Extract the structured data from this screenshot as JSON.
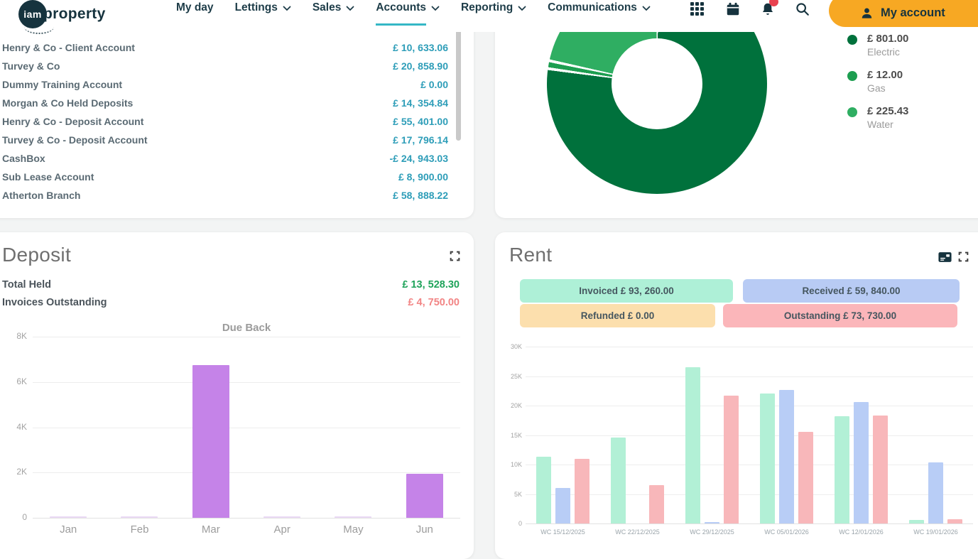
{
  "nav": {
    "logo": {
      "circle_text": "iam",
      "wordmark": "property"
    },
    "items": [
      {
        "label": "My day",
        "dropdown": false,
        "active": false
      },
      {
        "label": "Lettings",
        "dropdown": true,
        "active": false
      },
      {
        "label": "Sales",
        "dropdown": true,
        "active": false
      },
      {
        "label": "Accounts",
        "dropdown": true,
        "active": true
      },
      {
        "label": "Reporting",
        "dropdown": true,
        "active": false
      },
      {
        "label": "Communications",
        "dropdown": true,
        "active": false
      }
    ],
    "icons": [
      "apps-grid-icon",
      "calendar-icon",
      "notifications-bell-icon",
      "search-icon"
    ],
    "notification_badge_color": "#e8414f",
    "account_button": {
      "label": "My account",
      "bg": "#f7a823"
    }
  },
  "accounts_panel": {
    "amount_color": "#2d9db8",
    "rows": [
      {
        "name": "Henry & Co - Client Account",
        "amount": "£ 10, 633.06"
      },
      {
        "name": "Turvey & Co",
        "amount": "£ 20, 858.90"
      },
      {
        "name": "Dummy Training Account",
        "amount": "£ 0.00"
      },
      {
        "name": "Morgan & Co Held Deposits",
        "amount": "£ 14, 354.84"
      },
      {
        "name": "Henry & Co - Deposit Account",
        "amount": "£ 55, 401.00"
      },
      {
        "name": "Turvey & Co - Deposit Account",
        "amount": "£ 17, 796.14"
      },
      {
        "name": "CashBox",
        "amount": "-£ 24, 943.03"
      },
      {
        "name": "Sub Lease Account",
        "amount": "£ 8, 900.00"
      },
      {
        "name": "Atherton Branch",
        "amount": "£ 58, 888.22"
      }
    ]
  },
  "energy_panel": {
    "chart_data": {
      "type": "pie",
      "donut": true,
      "slices": [
        {
          "label": "Electric",
          "value": 801.0,
          "display": "£ 801.00",
          "color": "#00713c"
        },
        {
          "label": "Gas",
          "value": 12.0,
          "display": "£ 12.00",
          "color": "#1d9e50"
        },
        {
          "label": "Water",
          "value": 225.43,
          "display": "£ 225.43",
          "color": "#2fae62"
        }
      ],
      "legend_position": "right"
    }
  },
  "deposit_panel": {
    "title": "Deposit",
    "stats": [
      {
        "label": "Total Held",
        "value": "£ 13, 528.30",
        "color": "#1fa35a"
      },
      {
        "label": "Invoices Outstanding",
        "value": "£ 4, 750.00",
        "color": "#f28585"
      }
    ],
    "chart_data": {
      "type": "bar",
      "title": "Due Back",
      "categories": [
        "Jan",
        "Feb",
        "Mar",
        "Apr",
        "May",
        "Jun"
      ],
      "values": [
        40,
        40,
        6750,
        40,
        40,
        1950
      ],
      "bar_colors": [
        "#ead9f5",
        "#ead9f5",
        "#c583e8",
        "#ead9f5",
        "#ead9f5",
        "#c583e8"
      ],
      "ylim": [
        0,
        8000
      ],
      "yticks": [
        "8K",
        "6K",
        "4K",
        "2K",
        "0"
      ],
      "grid": true
    }
  },
  "rent_panel": {
    "title": "Rent",
    "header_icons": [
      "statement-card-icon",
      "expand-icon"
    ],
    "badges": [
      {
        "label": "Invoiced",
        "amount": "£ 93, 260.00",
        "bg": "#aef0d7"
      },
      {
        "label": "Received",
        "amount": "£ 59, 840.00",
        "bg": "#b8cbf4"
      },
      {
        "label": "Refunded",
        "amount": "£ 0.00",
        "bg": "#fcdfad"
      },
      {
        "label": "Outstanding",
        "amount": "£ 73, 730.00",
        "bg": "#fbb6ba"
      }
    ],
    "chart_data": {
      "type": "bar",
      "categories": [
        "WC 15/12/2025",
        "WC 22/12/2025",
        "WC 29/12/2025",
        "WC 05/01/2026",
        "WC 12/01/2026",
        "WC 19/01/2026"
      ],
      "series": [
        {
          "name": "Invoiced",
          "color": "#b2f0d6",
          "values": [
            11300,
            14600,
            26500,
            22100,
            18200,
            560
          ]
        },
        {
          "name": "Received",
          "color": "#b8cdf6",
          "values": [
            6000,
            0,
            150,
            22700,
            20600,
            10390
          ]
        },
        {
          "name": "Outstanding",
          "color": "#f8b7ba",
          "values": [
            11000,
            6500,
            21700,
            15530,
            18300,
            700
          ]
        }
      ],
      "ylim": [
        0,
        30000
      ],
      "yticks": [
        "30K",
        "25K",
        "20K",
        "15K",
        "10K",
        "5K",
        "0"
      ],
      "grid": true
    }
  }
}
